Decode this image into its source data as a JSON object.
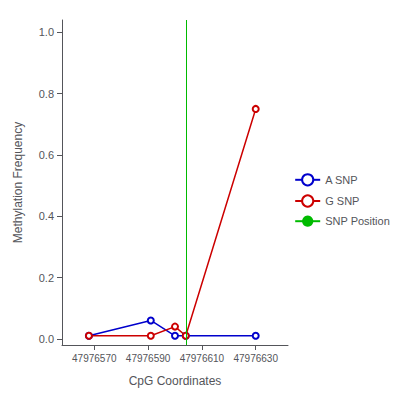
{
  "chart_data": {
    "type": "line",
    "xlabel": "CpG Coordinates",
    "ylabel": "Methylation Frequency",
    "xlim": [
      47976558,
      47976642
    ],
    "xticks": [
      47976570,
      47976590,
      47976610,
      47976630
    ],
    "ylim": [
      -0.02,
      1.04
    ],
    "yticks": [
      {
        "value": 0.0,
        "label": "0.0"
      },
      0.2,
      0.4,
      0.6,
      0.8,
      {
        "value": 1.0,
        "label": "1.0"
      }
    ],
    "grid": false,
    "legend": "right",
    "series": [
      {
        "name": "A SNP",
        "type": "line",
        "color": "#0000cc",
        "marker": "o",
        "x": [
          47976568,
          47976591,
          47976600,
          47976604,
          47976630
        ],
        "values": [
          0.01,
          0.06,
          0.01,
          0.01,
          0.01
        ]
      },
      {
        "name": "G SNP",
        "type": "line",
        "color": "#cc0000",
        "marker": "o",
        "x": [
          47976568,
          47976591,
          47976600,
          47976604,
          47976630
        ],
        "values": [
          0.01,
          0.01,
          0.04,
          0.01,
          0.75
        ]
      },
      {
        "name": "SNP Position",
        "type": "vline",
        "color": "#00bb00",
        "x": [
          47976604
        ]
      }
    ]
  }
}
